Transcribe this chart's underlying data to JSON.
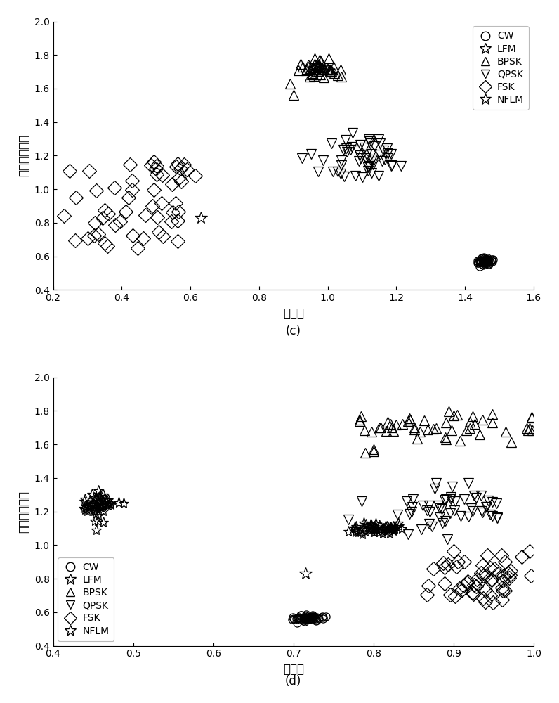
{
  "plot_c": {
    "title": "(c)",
    "xlabel": "样本熵",
    "ylabel": "归一化能量熵",
    "xlim": [
      0.2,
      1.6
    ],
    "ylim": [
      0.4,
      2.0
    ],
    "xticks": [
      0.2,
      0.4,
      0.6,
      0.8,
      1.0,
      1.2,
      1.4,
      1.6
    ],
    "yticks": [
      0.4,
      0.6,
      0.8,
      1.0,
      1.2,
      1.4,
      1.6,
      1.8,
      2.0
    ]
  },
  "plot_d": {
    "title": "(d)",
    "xlabel": "模糊熵",
    "ylabel": "归一化能量熵",
    "xlim": [
      0.4,
      1.0
    ],
    "ylim": [
      0.4,
      2.0
    ],
    "xticks": [
      0.4,
      0.5,
      0.6,
      0.7,
      0.8,
      0.9,
      1.0
    ],
    "yticks": [
      0.4,
      0.6,
      0.8,
      1.0,
      1.2,
      1.4,
      1.6,
      1.8,
      2.0
    ]
  },
  "color": "#000000",
  "bg_color": "#ffffff"
}
